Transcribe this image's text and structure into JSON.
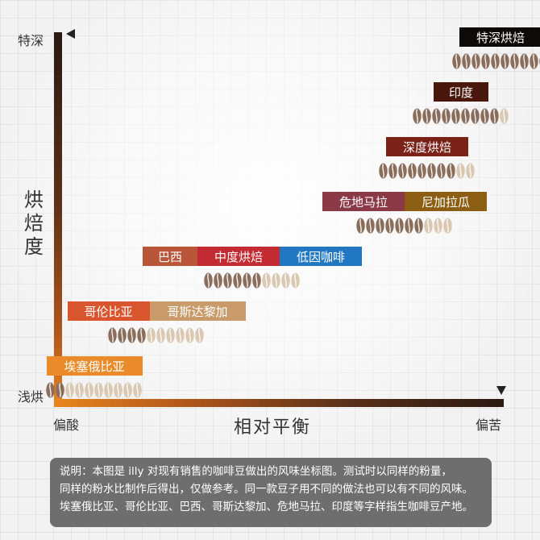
{
  "chart_data": {
    "type": "scatter",
    "ylabel": "烘焙度",
    "xlabel": "相对平衡",
    "y_low_label": "浅烘",
    "y_high_label": "特深",
    "x_low_label": "偏酸",
    "x_high_label": "偏苦",
    "bean_scale": 10,
    "points": [
      {
        "labels": [
          "埃塞俄比亚"
        ],
        "colors": [
          "#e98b2a"
        ],
        "x": 1.2,
        "y": 1,
        "beans": 2
      },
      {
        "labels": [
          "哥伦比亚",
          "哥斯达黎加"
        ],
        "colors": [
          "#d9552e",
          "#c99a6a"
        ],
        "x": 2.3,
        "y": 2,
        "beans": 4
      },
      {
        "labels": [
          "巴西",
          "中度烘焙",
          "低因咖啡"
        ],
        "colors": [
          "#b9563a",
          "#c42a32",
          "#2177c2"
        ],
        "x": 4.0,
        "y": 3,
        "beans": 6
      },
      {
        "labels": [
          "危地马拉",
          "尼加拉瓜"
        ],
        "colors": [
          "#8a3a46",
          "#8b5e14"
        ],
        "x": 6.7,
        "y": 4,
        "beans": 7
      },
      {
        "labels": [
          "深度烘焙"
        ],
        "colors": [
          "#7a2118"
        ],
        "x": 7.1,
        "y": 5,
        "beans": 8
      },
      {
        "labels": [
          "印度"
        ],
        "colors": [
          "#4a170c"
        ],
        "x": 7.7,
        "y": 6,
        "beans": 9
      },
      {
        "labels": [
          "特深烘焙"
        ],
        "colors": [
          "#0e0a08"
        ],
        "x": 8.4,
        "y": 7,
        "beans": 10
      }
    ]
  },
  "colors": {
    "bean_filled": "#8a6d5b",
    "bean_empty": "#d9c8b2",
    "axis_dark": "#2a1a12",
    "axis_light": "#e8851e"
  },
  "note": {
    "lines": [
      "说明：本图是 illy 对现有销售的咖啡豆做出的风味坐标图。测试时以同样的粉量，",
      "同样的粉水比制作后得出，仅做参考。同一款豆子用不同的做法也可以有不同的风味。",
      "埃塞俄比亚、哥伦比亚、巴西、哥斯达黎加、危地马拉、印度等字样指生咖啡豆产地。"
    ]
  }
}
